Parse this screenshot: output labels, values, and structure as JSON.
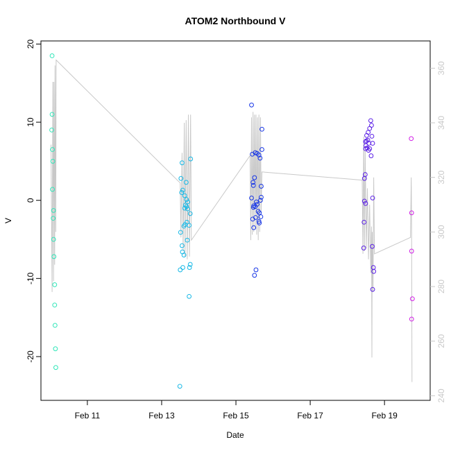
{
  "chart_data": {
    "type": "scatter",
    "title": "ATOM2 Northbound V",
    "xlabel": "Date",
    "ylabel": "V",
    "x_ticks": [
      {
        "value": 11,
        "label": "Feb 11"
      },
      {
        "value": 13,
        "label": "Feb 13"
      },
      {
        "value": 15,
        "label": "Feb 15"
      },
      {
        "value": 17,
        "label": "Feb 17"
      },
      {
        "value": 19,
        "label": "Feb 19"
      }
    ],
    "xlim": [
      9.75,
      20.23
    ],
    "ylim": [
      -25.6,
      20.4
    ],
    "y_ticks": [
      -20,
      -10,
      0,
      10,
      20
    ],
    "y2lim": [
      238.3,
      370.0
    ],
    "y2_ticks": [
      240,
      260,
      280,
      300,
      320,
      340,
      360
    ],
    "colors": {
      "axis": "#000000",
      "secondary_axis": "#c8c8c8",
      "line": "#c8c8c8",
      "groups": [
        "#2fe6b8",
        "#16b8e6",
        "#1433e6",
        "#5a1ee6",
        "#d11ee6"
      ]
    },
    "points": [
      {
        "x": 10.05,
        "y": 18.5,
        "g": 0
      },
      {
        "x": 10.05,
        "y": 11.0,
        "g": 0
      },
      {
        "x": 10.04,
        "y": 9.0,
        "g": 0
      },
      {
        "x": 10.06,
        "y": 6.5,
        "g": 0
      },
      {
        "x": 10.07,
        "y": 5.0,
        "g": 0
      },
      {
        "x": 10.06,
        "y": 1.4,
        "g": 0
      },
      {
        "x": 10.09,
        "y": -1.3,
        "g": 0
      },
      {
        "x": 10.08,
        "y": -2.3,
        "g": 0
      },
      {
        "x": 10.09,
        "y": -5.0,
        "g": 0
      },
      {
        "x": 10.1,
        "y": -7.2,
        "g": 0
      },
      {
        "x": 10.12,
        "y": -10.8,
        "g": 0
      },
      {
        "x": 10.12,
        "y": -13.4,
        "g": 0
      },
      {
        "x": 10.13,
        "y": -16.0,
        "g": 0
      },
      {
        "x": 10.14,
        "y": -19.0,
        "g": 0
      },
      {
        "x": 10.15,
        "y": -21.4,
        "g": 0
      },
      {
        "x": 13.55,
        "y": 4.8,
        "g": 1
      },
      {
        "x": 13.52,
        "y": 2.8,
        "g": 1
      },
      {
        "x": 13.57,
        "y": 1.3,
        "g": 1
      },
      {
        "x": 13.54,
        "y": 1.0,
        "g": 1
      },
      {
        "x": 13.66,
        "y": 2.3,
        "g": 1
      },
      {
        "x": 13.62,
        "y": 0.6,
        "g": 1
      },
      {
        "x": 13.67,
        "y": 0.1,
        "g": 1
      },
      {
        "x": 13.7,
        "y": -0.2,
        "g": 1
      },
      {
        "x": 13.64,
        "y": -0.6,
        "g": 1
      },
      {
        "x": 13.62,
        "y": -1.0,
        "g": 1
      },
      {
        "x": 13.67,
        "y": -0.8,
        "g": 1
      },
      {
        "x": 13.7,
        "y": -1.1,
        "g": 1
      },
      {
        "x": 13.77,
        "y": -1.7,
        "g": 1
      },
      {
        "x": 13.68,
        "y": -2.8,
        "g": 1
      },
      {
        "x": 13.74,
        "y": -3.2,
        "g": 1
      },
      {
        "x": 13.63,
        "y": -3.1,
        "g": 1
      },
      {
        "x": 13.6,
        "y": -3.3,
        "g": 1
      },
      {
        "x": 13.51,
        "y": -4.1,
        "g": 1
      },
      {
        "x": 13.69,
        "y": -5.1,
        "g": 1
      },
      {
        "x": 13.55,
        "y": -5.8,
        "g": 1
      },
      {
        "x": 13.56,
        "y": -6.6,
        "g": 1
      },
      {
        "x": 13.6,
        "y": -7.0,
        "g": 1
      },
      {
        "x": 13.77,
        "y": -8.2,
        "g": 1
      },
      {
        "x": 13.75,
        "y": -8.6,
        "g": 1
      },
      {
        "x": 13.57,
        "y": -8.6,
        "g": 1
      },
      {
        "x": 13.5,
        "y": -8.9,
        "g": 1
      },
      {
        "x": 13.74,
        "y": -12.3,
        "g": 1
      },
      {
        "x": 13.49,
        "y": -23.8,
        "g": 1
      },
      {
        "x": 13.78,
        "y": 5.3,
        "g": 1
      },
      {
        "x": 15.42,
        "y": 12.2,
        "g": 2
      },
      {
        "x": 15.7,
        "y": 9.1,
        "g": 2
      },
      {
        "x": 15.7,
        "y": 6.5,
        "g": 2
      },
      {
        "x": 15.44,
        "y": 5.9,
        "g": 2
      },
      {
        "x": 15.52,
        "y": 6.1,
        "g": 2
      },
      {
        "x": 15.57,
        "y": 6.0,
        "g": 2
      },
      {
        "x": 15.62,
        "y": 5.8,
        "g": 2
      },
      {
        "x": 15.65,
        "y": 5.4,
        "g": 2
      },
      {
        "x": 15.5,
        "y": 2.9,
        "g": 2
      },
      {
        "x": 15.46,
        "y": 2.3,
        "g": 2
      },
      {
        "x": 15.47,
        "y": 1.9,
        "g": 2
      },
      {
        "x": 15.68,
        "y": 1.8,
        "g": 2
      },
      {
        "x": 15.42,
        "y": 0.3,
        "g": 2
      },
      {
        "x": 15.68,
        "y": 0.4,
        "g": 2
      },
      {
        "x": 15.66,
        "y": 0.0,
        "g": 2
      },
      {
        "x": 15.55,
        "y": -0.2,
        "g": 2
      },
      {
        "x": 15.57,
        "y": -0.5,
        "g": 2
      },
      {
        "x": 15.48,
        "y": -0.7,
        "g": 2
      },
      {
        "x": 15.52,
        "y": -0.8,
        "g": 2
      },
      {
        "x": 15.47,
        "y": -0.9,
        "g": 2
      },
      {
        "x": 15.6,
        "y": -1.4,
        "g": 2
      },
      {
        "x": 15.63,
        "y": -1.6,
        "g": 2
      },
      {
        "x": 15.67,
        "y": -2.1,
        "g": 2
      },
      {
        "x": 15.53,
        "y": -2.2,
        "g": 2
      },
      {
        "x": 15.45,
        "y": -2.4,
        "g": 2
      },
      {
        "x": 15.62,
        "y": -2.7,
        "g": 2
      },
      {
        "x": 15.63,
        "y": -2.9,
        "g": 2
      },
      {
        "x": 15.48,
        "y": -3.5,
        "g": 2
      },
      {
        "x": 15.54,
        "y": -8.9,
        "g": 2
      },
      {
        "x": 15.5,
        "y": -9.6,
        "g": 2
      },
      {
        "x": 18.63,
        "y": 10.2,
        "g": 3
      },
      {
        "x": 18.65,
        "y": 9.6,
        "g": 3
      },
      {
        "x": 18.6,
        "y": 9.2,
        "g": 3
      },
      {
        "x": 18.56,
        "y": 8.7,
        "g": 3
      },
      {
        "x": 18.52,
        "y": 8.3,
        "g": 3
      },
      {
        "x": 18.66,
        "y": 8.2,
        "g": 3
      },
      {
        "x": 18.55,
        "y": 7.7,
        "g": 3
      },
      {
        "x": 18.49,
        "y": 7.5,
        "g": 3
      },
      {
        "x": 18.51,
        "y": 7.6,
        "g": 3
      },
      {
        "x": 18.58,
        "y": 7.3,
        "g": 3
      },
      {
        "x": 18.68,
        "y": 7.3,
        "g": 3
      },
      {
        "x": 18.5,
        "y": 7.0,
        "g": 3
      },
      {
        "x": 18.53,
        "y": 6.7,
        "g": 3
      },
      {
        "x": 18.49,
        "y": 6.6,
        "g": 3
      },
      {
        "x": 18.6,
        "y": 6.6,
        "g": 3
      },
      {
        "x": 18.57,
        "y": 6.4,
        "g": 3
      },
      {
        "x": 18.64,
        "y": 5.7,
        "g": 3
      },
      {
        "x": 18.48,
        "y": 3.3,
        "g": 3
      },
      {
        "x": 18.46,
        "y": 2.8,
        "g": 3
      },
      {
        "x": 18.68,
        "y": 0.3,
        "g": 3
      },
      {
        "x": 18.46,
        "y": -0.1,
        "g": 3
      },
      {
        "x": 18.49,
        "y": -0.4,
        "g": 3
      },
      {
        "x": 18.45,
        "y": -2.8,
        "g": 3
      },
      {
        "x": 18.67,
        "y": -5.9,
        "g": 3
      },
      {
        "x": 18.44,
        "y": -6.1,
        "g": 3
      },
      {
        "x": 18.7,
        "y": -8.6,
        "g": 3
      },
      {
        "x": 18.71,
        "y": -9.1,
        "g": 3
      },
      {
        "x": 18.68,
        "y": -11.4,
        "g": 3
      },
      {
        "x": 19.72,
        "y": 7.9,
        "g": 4
      },
      {
        "x": 19.73,
        "y": -1.6,
        "g": 4
      },
      {
        "x": 19.73,
        "y": -6.5,
        "g": 4
      },
      {
        "x": 19.75,
        "y": -12.6,
        "g": 4
      },
      {
        "x": 19.73,
        "y": -15.2,
        "g": 4
      }
    ],
    "line_series": [
      {
        "x": 10.02,
        "y2": 332
      },
      {
        "x": 10.05,
        "y2": 278
      },
      {
        "x": 10.07,
        "y2": 355
      },
      {
        "x": 10.09,
        "y2": 282
      },
      {
        "x": 10.1,
        "y2": 355
      },
      {
        "x": 10.12,
        "y2": 288
      },
      {
        "x": 10.13,
        "y2": 361
      },
      {
        "x": 10.15,
        "y2": 300
      },
      {
        "x": 10.16,
        "y2": 363
      },
      {
        "x": 13.42,
        "y2": 319
      },
      {
        "x": 13.5,
        "y2": 318
      },
      {
        "x": 13.52,
        "y2": 298
      },
      {
        "x": 13.55,
        "y2": 329
      },
      {
        "x": 13.58,
        "y2": 293
      },
      {
        "x": 13.61,
        "y2": 340
      },
      {
        "x": 13.63,
        "y2": 291
      },
      {
        "x": 13.66,
        "y2": 341
      },
      {
        "x": 13.69,
        "y2": 290
      },
      {
        "x": 13.72,
        "y2": 343
      },
      {
        "x": 13.75,
        "y2": 291
      },
      {
        "x": 13.78,
        "y2": 343
      },
      {
        "x": 13.8,
        "y2": 297
      },
      {
        "x": 15.38,
        "y2": 328
      },
      {
        "x": 15.4,
        "y2": 297
      },
      {
        "x": 15.42,
        "y2": 342
      },
      {
        "x": 15.44,
        "y2": 299
      },
      {
        "x": 15.46,
        "y2": 344
      },
      {
        "x": 15.48,
        "y2": 300
      },
      {
        "x": 15.5,
        "y2": 343
      },
      {
        "x": 15.52,
        "y2": 301
      },
      {
        "x": 15.54,
        "y2": 343
      },
      {
        "x": 15.56,
        "y2": 299
      },
      {
        "x": 15.58,
        "y2": 342
      },
      {
        "x": 15.6,
        "y2": 297
      },
      {
        "x": 15.62,
        "y2": 343
      },
      {
        "x": 15.64,
        "y2": 300
      },
      {
        "x": 15.66,
        "y2": 342
      },
      {
        "x": 15.68,
        "y2": 307
      },
      {
        "x": 15.7,
        "y2": 322
      },
      {
        "x": 18.4,
        "y2": 319
      },
      {
        "x": 18.42,
        "y2": 292
      },
      {
        "x": 18.44,
        "y2": 335
      },
      {
        "x": 18.46,
        "y2": 293
      },
      {
        "x": 18.48,
        "y2": 331
      },
      {
        "x": 18.51,
        "y2": 294
      },
      {
        "x": 18.54,
        "y2": 316
      },
      {
        "x": 18.57,
        "y2": 290
      },
      {
        "x": 18.6,
        "y2": 310
      },
      {
        "x": 18.63,
        "y2": 285
      },
      {
        "x": 18.65,
        "y2": 302
      },
      {
        "x": 18.66,
        "y2": 254
      },
      {
        "x": 18.67,
        "y2": 300
      },
      {
        "x": 18.69,
        "y2": 278
      },
      {
        "x": 18.71,
        "y2": 320
      },
      {
        "x": 18.73,
        "y2": 292
      },
      {
        "x": 19.7,
        "y2": 298
      },
      {
        "x": 19.72,
        "y2": 320
      },
      {
        "x": 19.73,
        "y2": 302
      },
      {
        "x": 19.74,
        "y2": 245
      }
    ],
    "grid": false,
    "legend": "none"
  }
}
